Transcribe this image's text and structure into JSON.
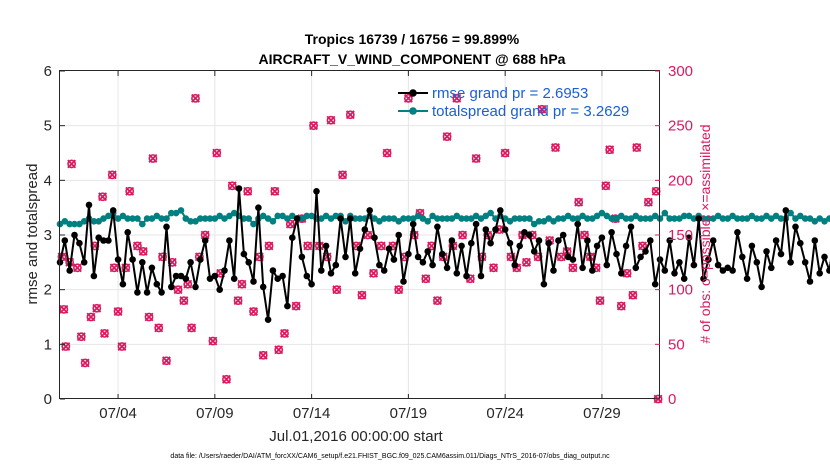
{
  "chart_data": {
    "type": "line",
    "title_line1": "Tropics 16739 / 16756 = 99.899%",
    "title_line2": "AIRCRAFT_V_WIND_COMPONENT @ 688 hPa",
    "xlabel": "Jul.01,2016 00:00:00 start",
    "ylabel": "rmse and totalspread",
    "ylabel_right": "# of obs: o=possible; ×=assimilated",
    "footer": "data file: /Users/raeder/DAI/ATM_forcXX/CAM6_setup/f.e21.FHIST_BGC.f09_025.CAM6assim.011/Diags_NTrS_2016-07/obs_diag_output.nc",
    "xlim": [
      1.0,
      32.0
    ],
    "ylim": [
      0,
      6
    ],
    "ylim_right": [
      0,
      300
    ],
    "x_ticks": [
      4,
      9,
      14,
      19,
      24,
      29
    ],
    "x_tick_labels": [
      "07/04",
      "07/09",
      "07/14",
      "07/19",
      "07/24",
      "07/29"
    ],
    "y_ticks": [
      0,
      1,
      2,
      3,
      4,
      5,
      6
    ],
    "y_tick_labels": [
      "0",
      "1",
      "2",
      "3",
      "4",
      "5",
      "6"
    ],
    "y_ticks_right": [
      0,
      50,
      100,
      150,
      200,
      250,
      300
    ],
    "y_tick_labels_right": [
      "0",
      "50",
      "100",
      "150",
      "200",
      "250",
      "300"
    ],
    "x_start": 1.0,
    "x_step": 0.25,
    "series": [
      {
        "name": "rmse grand pr = 2.6953",
        "color": "#000000",
        "marker": "dot",
        "values": [
          2.5,
          2.9,
          2.35,
          3.0,
          2.85,
          2.5,
          3.55,
          2.25,
          2.95,
          2.9,
          2.9,
          3.45,
          2.55,
          2.1,
          3.05,
          2.55,
          1.95,
          2.5,
          1.95,
          2.4,
          2.1,
          1.95,
          3.15,
          2.05,
          2.25,
          2.25,
          2.2,
          2.5,
          2.05,
          2.55,
          2.9,
          2.2,
          2.25,
          2.0,
          2.35,
          2.9,
          2.2,
          3.85,
          2.65,
          2.5,
          2.15,
          3.5,
          2.05,
          1.45,
          2.35,
          2.2,
          2.25,
          1.7,
          2.95,
          3.3,
          2.6,
          2.25,
          2.1,
          3.8,
          2.35,
          2.8,
          2.3,
          2.45,
          3.3,
          2.6,
          3.3,
          2.3,
          2.75,
          3.1,
          3.45,
          2.95,
          2.45,
          2.35,
          2.75,
          2.55,
          3.0,
          2.15,
          2.65,
          3.2,
          2.6,
          2.5,
          2.7,
          2.45,
          3.15,
          2.65,
          2.4,
          2.9,
          2.3,
          2.8,
          2.25,
          2.85,
          3.2,
          2.25,
          3.1,
          2.85,
          3.1,
          3.45,
          3.1,
          2.85,
          2.45,
          2.8,
          3.05,
          3.0,
          2.7,
          2.9,
          2.1,
          2.85,
          2.35,
          2.9,
          3.0,
          2.6,
          2.55,
          3.2,
          2.4,
          2.9,
          2.35,
          2.8,
          2.95,
          2.45,
          3.05,
          2.65,
          2.3,
          2.8,
          3.15,
          2.4,
          2.6,
          2.7,
          2.9,
          2.1,
          2.55,
          2.35,
          2.9,
          2.3,
          2.5,
          2.2,
          2.95,
          2.45,
          3.3,
          2.2,
          2.55,
          2.9,
          2.45,
          2.35,
          2.4,
          2.35,
          3.05,
          2.6,
          2.2,
          2.8,
          2.5,
          2.05,
          2.7,
          2.4,
          2.9,
          2.65,
          3.45,
          2.5,
          3.15,
          2.85,
          2.5,
          2.15,
          2.9,
          2.3,
          2.6,
          2.35,
          2.95,
          2.55,
          2.65,
          2.5,
          3.2,
          2.45,
          3.1,
          2.55,
          2.3,
          2.85,
          2.75,
          2.55,
          3.1,
          2.45,
          2.6,
          2.7,
          2.85,
          2.95,
          3.0,
          2.55,
          3.05,
          3.0,
          2.65,
          2.7,
          2.8,
          2.95,
          3.0,
          2.8,
          2.95,
          2.85,
          3.0,
          3.05,
          3.05,
          2.85,
          2.9,
          2.95,
          3.1
        ]
      },
      {
        "name": "totalspread grand pr = 3.2629",
        "color": "#008080",
        "marker": "dot",
        "values": [
          3.2,
          3.25,
          3.2,
          3.2,
          3.2,
          3.25,
          3.3,
          3.25,
          3.25,
          3.3,
          3.35,
          3.4,
          3.3,
          3.35,
          3.3,
          3.3,
          3.3,
          3.2,
          3.3,
          3.3,
          3.35,
          3.3,
          3.3,
          3.4,
          3.4,
          3.45,
          3.3,
          3.25,
          3.25,
          3.3,
          3.3,
          3.3,
          3.3,
          3.35,
          3.3,
          3.35,
          3.4,
          3.35,
          3.3,
          3.3,
          3.2,
          3.3,
          3.35,
          3.3,
          3.25,
          3.35,
          3.35,
          3.3,
          3.35,
          3.3,
          3.3,
          3.35,
          3.35,
          3.3,
          3.3,
          3.35,
          3.3,
          3.35,
          3.35,
          3.25,
          3.35,
          3.3,
          3.3,
          3.3,
          3.35,
          3.3,
          3.25,
          3.3,
          3.3,
          3.3,
          3.25,
          3.3,
          3.3,
          3.3,
          3.35,
          3.3,
          3.25,
          3.35,
          3.3,
          3.3,
          3.3,
          3.3,
          3.35,
          3.3,
          3.3,
          3.3,
          3.35,
          3.3,
          3.35,
          3.4,
          3.3,
          3.35,
          3.3,
          3.25,
          3.3,
          3.3,
          3.3,
          3.3,
          3.2,
          3.25,
          3.25,
          3.3,
          3.25,
          3.3,
          3.3,
          3.35,
          3.3,
          3.3,
          3.35,
          3.3,
          3.3,
          3.35,
          3.4,
          3.35,
          3.3,
          3.3,
          3.35,
          3.3,
          3.3,
          3.35,
          3.3,
          3.3,
          3.3,
          3.35,
          3.3,
          3.4,
          3.3,
          3.3,
          3.3,
          3.35,
          3.35,
          3.3,
          3.35,
          3.3,
          3.3,
          3.3,
          3.35,
          3.3,
          3.3,
          3.35,
          3.3,
          3.3,
          3.3,
          3.35,
          3.3,
          3.3,
          3.35,
          3.3,
          3.35,
          3.3,
          3.3,
          3.4,
          3.3,
          3.35,
          3.3,
          3.3,
          3.25,
          3.3,
          3.25,
          3.3,
          3.3,
          3.3,
          3.25,
          3.3,
          3.3,
          3.3,
          3.35,
          3.3,
          3.3,
          3.3,
          3.3,
          3.35,
          3.3,
          3.3,
          3.25,
          3.3,
          3.25,
          3.3,
          3.3,
          3.3,
          3.35,
          3.3,
          3.3,
          3.3,
          3.3,
          3.3,
          3.35,
          3.3,
          3.3,
          3.35,
          3.3,
          3.3,
          3.35,
          3.3,
          3.35,
          3.3
        ]
      }
    ],
    "obs_counts": {
      "axis": "right",
      "color": "#d81b60",
      "marker_possible": "o",
      "marker_assimilated": "×",
      "points": [
        [
          1.1,
          130
        ],
        [
          1.2,
          82
        ],
        [
          1.3,
          48
        ],
        [
          1.5,
          125
        ],
        [
          1.6,
          215
        ],
        [
          1.9,
          120
        ],
        [
          2.1,
          57
        ],
        [
          2.3,
          33
        ],
        [
          2.6,
          75
        ],
        [
          2.8,
          140
        ],
        [
          2.9,
          83
        ],
        [
          3.2,
          185
        ],
        [
          3.3,
          60
        ],
        [
          3.7,
          205
        ],
        [
          3.8,
          120
        ],
        [
          4.0,
          80
        ],
        [
          4.2,
          48
        ],
        [
          4.4,
          120
        ],
        [
          4.6,
          190
        ],
        [
          5.0,
          140
        ],
        [
          5.3,
          135
        ],
        [
          5.6,
          75
        ],
        [
          5.8,
          220
        ],
        [
          6.1,
          65
        ],
        [
          6.3,
          130
        ],
        [
          6.5,
          35
        ],
        [
          6.8,
          125
        ],
        [
          7.1,
          100
        ],
        [
          7.4,
          90
        ],
        [
          7.6,
          105
        ],
        [
          7.8,
          65
        ],
        [
          8.0,
          275
        ],
        [
          8.2,
          130
        ],
        [
          8.5,
          150
        ],
        [
          8.9,
          53
        ],
        [
          9.1,
          225
        ],
        [
          9.3,
          115
        ],
        [
          9.6,
          18
        ],
        [
          9.9,
          195
        ],
        [
          10.2,
          90
        ],
        [
          10.4,
          105
        ],
        [
          10.7,
          190
        ],
        [
          11.0,
          80
        ],
        [
          11.3,
          130
        ],
        [
          11.5,
          40
        ],
        [
          11.8,
          140
        ],
        [
          12.1,
          190
        ],
        [
          12.3,
          45
        ],
        [
          12.6,
          60
        ],
        [
          12.9,
          160
        ],
        [
          13.2,
          85
        ],
        [
          13.5,
          165
        ],
        [
          13.8,
          140
        ],
        [
          14.1,
          250
        ],
        [
          14.4,
          140
        ],
        [
          14.8,
          130
        ],
        [
          15.0,
          255
        ],
        [
          15.3,
          100
        ],
        [
          15.6,
          205
        ],
        [
          16.0,
          260
        ],
        [
          16.3,
          140
        ],
        [
          16.6,
          95
        ],
        [
          16.9,
          150
        ],
        [
          17.2,
          115
        ],
        [
          17.6,
          140
        ],
        [
          17.9,
          225
        ],
        [
          18.2,
          140
        ],
        [
          18.5,
          100
        ],
        [
          18.8,
          130
        ],
        [
          19.0,
          275
        ],
        [
          19.3,
          150
        ],
        [
          19.6,
          170
        ],
        [
          19.9,
          110
        ],
        [
          20.2,
          140
        ],
        [
          20.5,
          90
        ],
        [
          20.8,
          130
        ],
        [
          21.0,
          240
        ],
        [
          21.3,
          140
        ],
        [
          21.5,
          275
        ],
        [
          21.8,
          150
        ],
        [
          22.2,
          110
        ],
        [
          22.5,
          220
        ],
        [
          22.8,
          130
        ],
        [
          23.1,
          150
        ],
        [
          23.4,
          120
        ],
        [
          23.7,
          155
        ],
        [
          24.0,
          225
        ],
        [
          24.3,
          130
        ],
        [
          24.6,
          120
        ],
        [
          24.9,
          150
        ],
        [
          25.1,
          125
        ],
        [
          25.4,
          150
        ],
        [
          25.7,
          130
        ],
        [
          25.9,
          265
        ],
        [
          26.3,
          145
        ],
        [
          26.6,
          230
        ],
        [
          26.9,
          130
        ],
        [
          27.2,
          135
        ],
        [
          27.5,
          120
        ],
        [
          27.8,
          180
        ],
        [
          28.1,
          150
        ],
        [
          28.4,
          130
        ],
        [
          28.7,
          120
        ],
        [
          28.9,
          90
        ],
        [
          29.2,
          195
        ],
        [
          29.4,
          228
        ],
        [
          29.7,
          165
        ],
        [
          30.0,
          85
        ],
        [
          30.3,
          115
        ],
        [
          30.6,
          95
        ],
        [
          30.8,
          230
        ],
        [
          31.1,
          140
        ],
        [
          31.4,
          180
        ],
        [
          31.8,
          190
        ],
        [
          31.9,
          0
        ]
      ]
    }
  }
}
